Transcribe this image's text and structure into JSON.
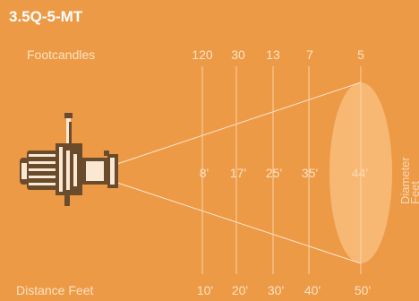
{
  "title": "3.5Q-5-MT",
  "footcandles_label": "Footcandles",
  "distance_label": "Distance Feet",
  "diameter_label": "Diameter",
  "diameter_label_cont": "Feet",
  "colors": {
    "background": "#ed9a47",
    "title": "#ffffff",
    "label": "#fde2c2",
    "guide_line": "#fbd3a6",
    "beam_line": "#fde6cc",
    "ellipse_fill": "#f7b874",
    "diameter_text": "#fbd9b2",
    "fixture_dark": "#6a4b2c",
    "fixture_light": "#fbe8d3"
  },
  "stations": [
    {
      "footcandles": "120",
      "diameter": "8'",
      "distance": "10'"
    },
    {
      "footcandles": "30",
      "diameter": "17'",
      "distance": "20'"
    },
    {
      "footcandles": "13",
      "diameter": "25'",
      "distance": "30'"
    },
    {
      "footcandles": "7",
      "diameter": "35'",
      "distance": "40'"
    },
    {
      "footcandles": "5",
      "diameter": "44'",
      "distance": "50'"
    }
  ]
}
